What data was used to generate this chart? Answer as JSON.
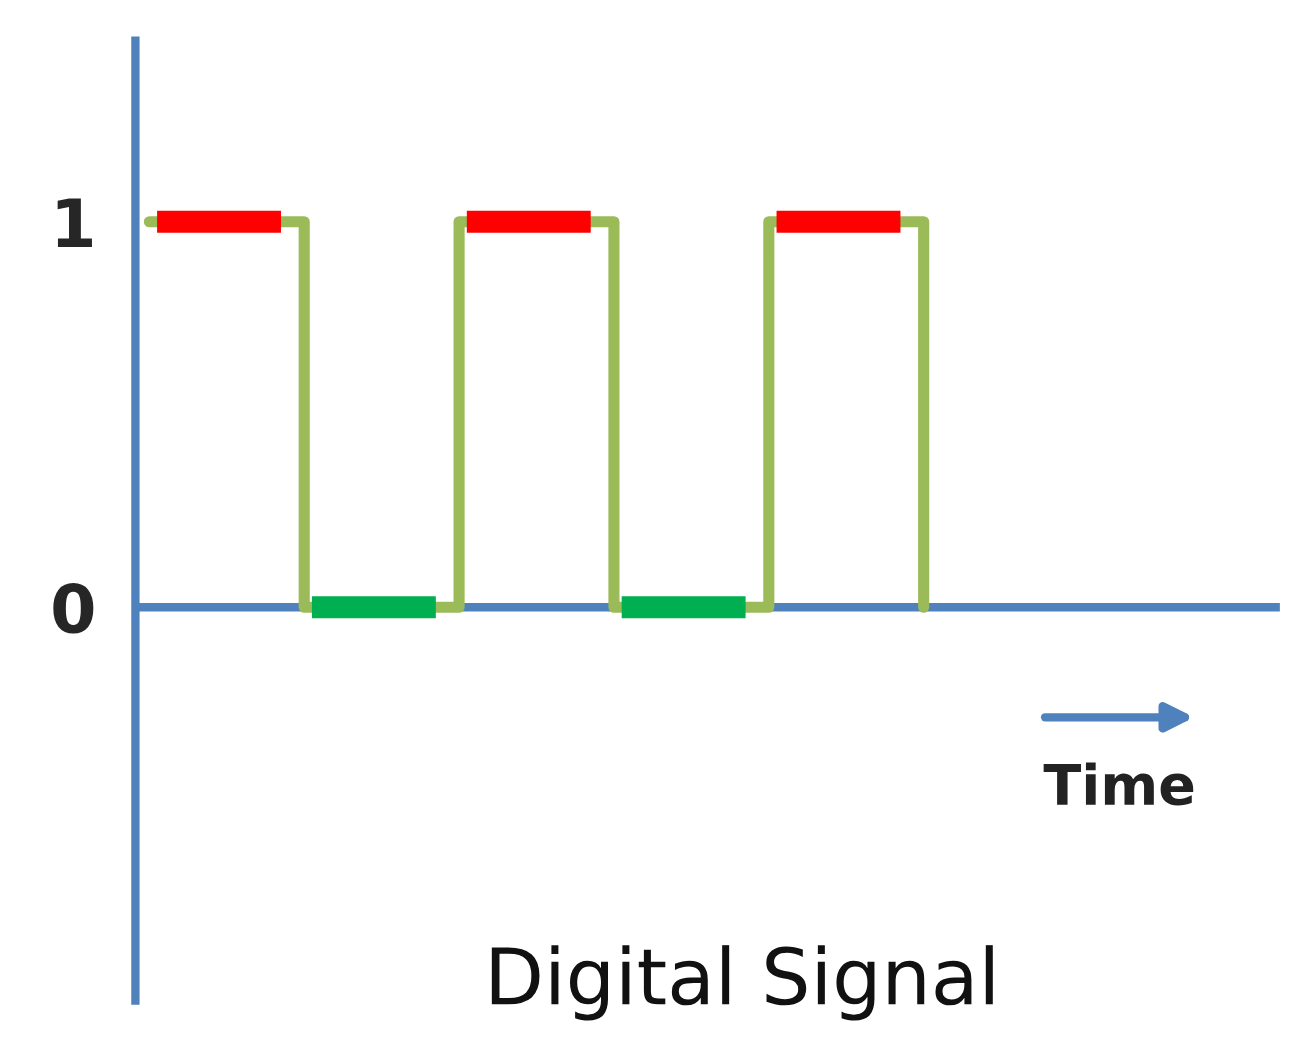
{
  "chart_data": {
    "type": "step",
    "title": "Digital Signal",
    "categories": [
      null,
      null,
      null,
      null,
      null,
      null
    ],
    "values": [
      1,
      0,
      1,
      0,
      1,
      0
    ],
    "color": "#9bbb59",
    "colors": [
      "#ff0000",
      "#00b050",
      "#ff0000",
      "#00b050",
      "#ff0000",
      null
    ],
    "ref_lines": [
      {
        "axis": "y",
        "value": 0,
        "color": "#4f81bd"
      }
    ],
    "ylim": [
      -1.02,
      1.47
    ],
    "yticks": [
      0,
      1
    ],
    "annotations": [
      "Time"
    ]
  }
}
